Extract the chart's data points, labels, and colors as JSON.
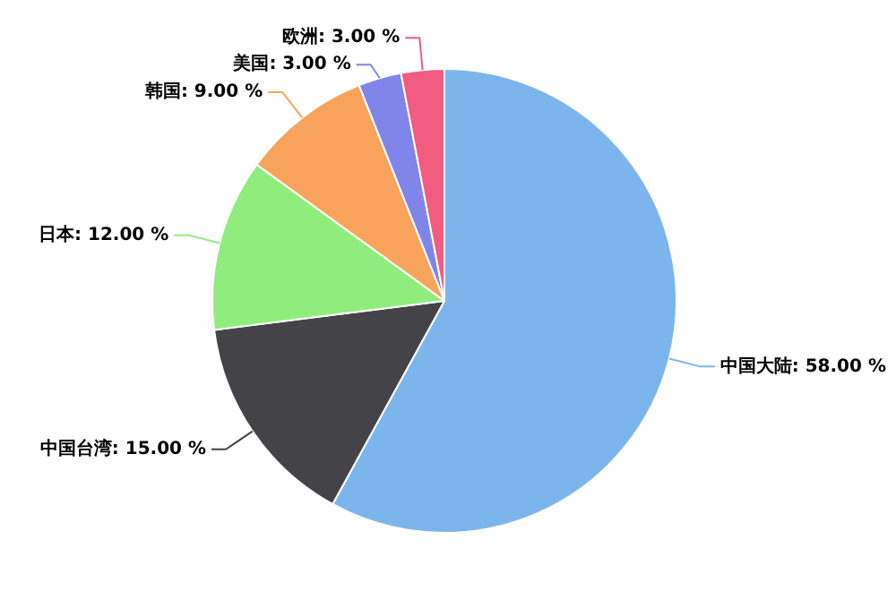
{
  "chart_data": {
    "type": "pie",
    "categories": [
      "中国大陆",
      "中国台湾",
      "日本",
      "韩国",
      "美国",
      "欧洲"
    ],
    "values": [
      58,
      15,
      12,
      9,
      3,
      3
    ],
    "value_labels": [
      "58.00 %",
      "15.00 %",
      "12.00 %",
      "9.00 %",
      "3.00 %",
      "3.00 %"
    ],
    "colors": [
      "#7cb5ec",
      "#434348",
      "#90ed7d",
      "#f7a35c",
      "#8085e9",
      "#f15c80"
    ],
    "legend": false
  }
}
